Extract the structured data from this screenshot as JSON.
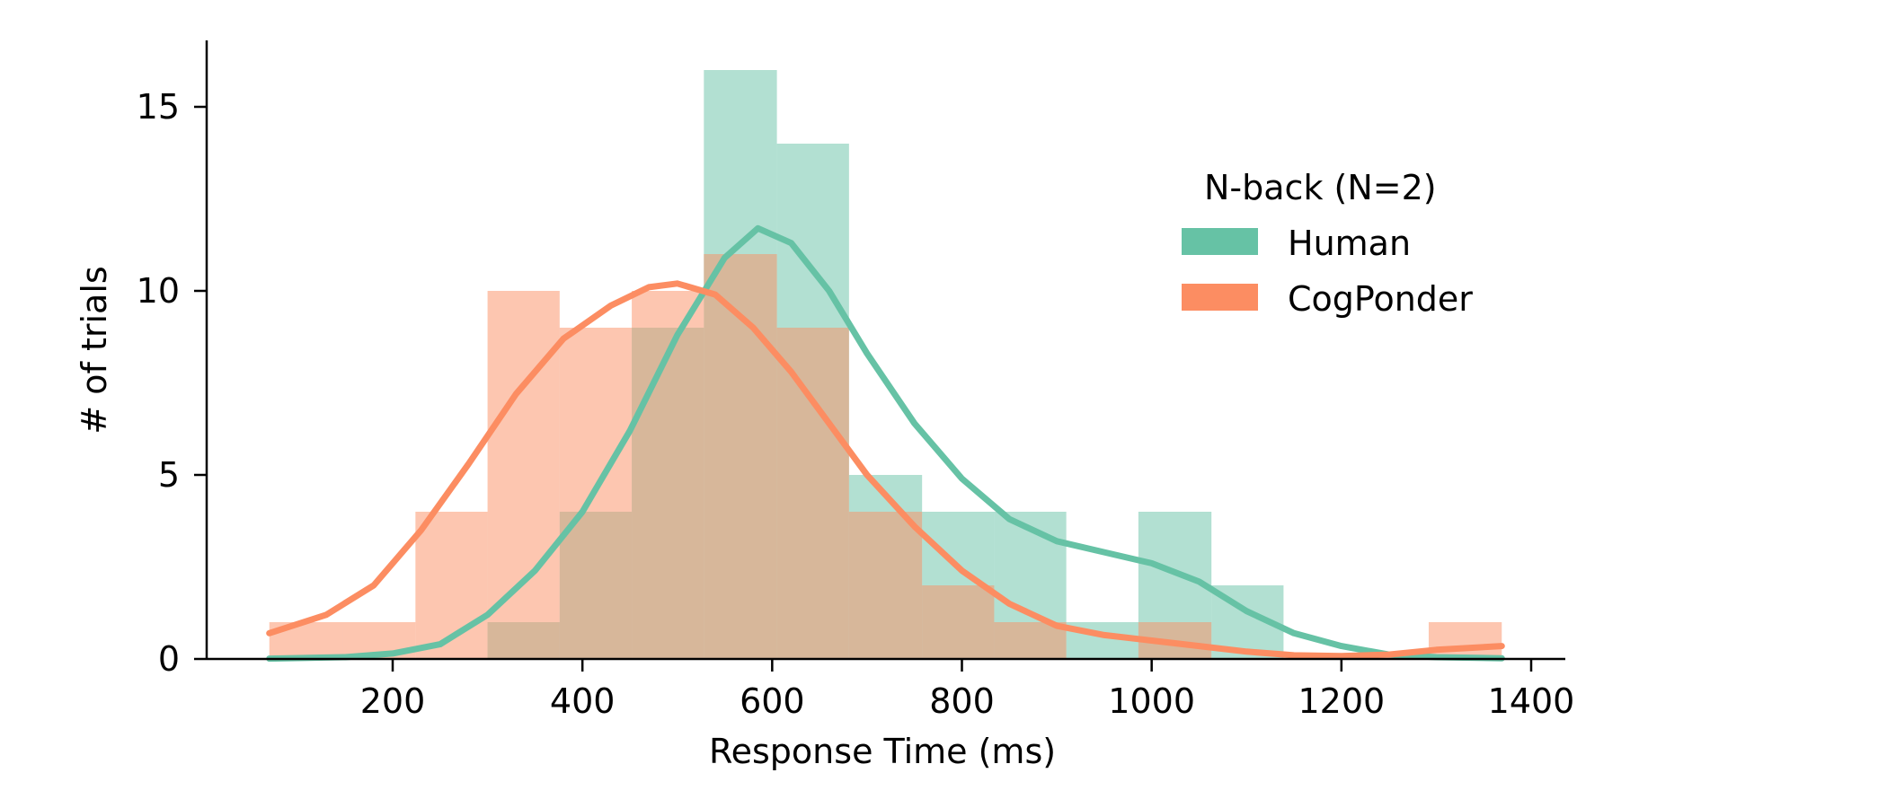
{
  "chart_data": {
    "type": "histogram",
    "xlabel": "Response Time (ms)",
    "ylabel": "# of trials",
    "xlim": [
      0,
      1400
    ],
    "ylim": [
      0,
      16.8
    ],
    "xticks": [
      200,
      400,
      600,
      800,
      1000,
      1200,
      1400
    ],
    "yticks": [
      0,
      5,
      10,
      15
    ],
    "legend": {
      "title": "N-back (N=2)",
      "position": "upper-right"
    },
    "series": [
      {
        "name": "Human",
        "color": "#66c2a5",
        "bins": [
          {
            "x0": 70,
            "x1": 147,
            "count": 0
          },
          {
            "x0": 147,
            "x1": 224,
            "count": 0
          },
          {
            "x0": 224,
            "x1": 300,
            "count": 0
          },
          {
            "x0": 300,
            "x1": 376,
            "count": 1
          },
          {
            "x0": 376,
            "x1": 452,
            "count": 4
          },
          {
            "x0": 452,
            "x1": 528,
            "count": 9
          },
          {
            "x0": 528,
            "x1": 605,
            "count": 16
          },
          {
            "x0": 605,
            "x1": 681,
            "count": 14
          },
          {
            "x0": 681,
            "x1": 758,
            "count": 5
          },
          {
            "x0": 758,
            "x1": 834,
            "count": 4
          },
          {
            "x0": 834,
            "x1": 910,
            "count": 4
          },
          {
            "x0": 910,
            "x1": 986,
            "count": 1
          },
          {
            "x0": 986,
            "x1": 1063,
            "count": 4
          },
          {
            "x0": 1063,
            "x1": 1139,
            "count": 2
          },
          {
            "x0": 1139,
            "x1": 1216,
            "count": 0
          },
          {
            "x0": 1216,
            "x1": 1292,
            "count": 0
          },
          {
            "x0": 1292,
            "x1": 1369,
            "count": 0
          }
        ],
        "kde": [
          [
            70,
            0.01
          ],
          [
            150,
            0.05
          ],
          [
            200,
            0.15
          ],
          [
            250,
            0.4
          ],
          [
            300,
            1.2
          ],
          [
            350,
            2.4
          ],
          [
            400,
            4.0
          ],
          [
            450,
            6.2
          ],
          [
            500,
            8.8
          ],
          [
            550,
            10.9
          ],
          [
            585,
            11.7
          ],
          [
            620,
            11.3
          ],
          [
            660,
            10.0
          ],
          [
            700,
            8.3
          ],
          [
            750,
            6.4
          ],
          [
            800,
            4.9
          ],
          [
            850,
            3.8
          ],
          [
            900,
            3.2
          ],
          [
            950,
            2.9
          ],
          [
            1000,
            2.6
          ],
          [
            1050,
            2.1
          ],
          [
            1100,
            1.3
          ],
          [
            1150,
            0.7
          ],
          [
            1200,
            0.35
          ],
          [
            1250,
            0.12
          ],
          [
            1300,
            0.05
          ],
          [
            1369,
            0.02
          ]
        ]
      },
      {
        "name": "CogPonder",
        "color": "#fc8d62",
        "bins": [
          {
            "x0": 70,
            "x1": 147,
            "count": 1
          },
          {
            "x0": 147,
            "x1": 224,
            "count": 1
          },
          {
            "x0": 224,
            "x1": 300,
            "count": 4
          },
          {
            "x0": 300,
            "x1": 376,
            "count": 10
          },
          {
            "x0": 376,
            "x1": 452,
            "count": 9
          },
          {
            "x0": 452,
            "x1": 528,
            "count": 10
          },
          {
            "x0": 528,
            "x1": 605,
            "count": 11
          },
          {
            "x0": 605,
            "x1": 681,
            "count": 9
          },
          {
            "x0": 681,
            "x1": 758,
            "count": 4
          },
          {
            "x0": 758,
            "x1": 834,
            "count": 2
          },
          {
            "x0": 834,
            "x1": 910,
            "count": 1
          },
          {
            "x0": 910,
            "x1": 986,
            "count": 0
          },
          {
            "x0": 986,
            "x1": 1063,
            "count": 1
          },
          {
            "x0": 1063,
            "x1": 1139,
            "count": 0
          },
          {
            "x0": 1139,
            "x1": 1216,
            "count": 0
          },
          {
            "x0": 1216,
            "x1": 1292,
            "count": 0
          },
          {
            "x0": 1292,
            "x1": 1369,
            "count": 1
          }
        ],
        "kde": [
          [
            70,
            0.7
          ],
          [
            130,
            1.2
          ],
          [
            180,
            2.0
          ],
          [
            230,
            3.5
          ],
          [
            280,
            5.3
          ],
          [
            330,
            7.2
          ],
          [
            380,
            8.7
          ],
          [
            430,
            9.6
          ],
          [
            470,
            10.1
          ],
          [
            500,
            10.2
          ],
          [
            540,
            9.9
          ],
          [
            580,
            9.0
          ],
          [
            620,
            7.8
          ],
          [
            660,
            6.4
          ],
          [
            700,
            5.0
          ],
          [
            750,
            3.6
          ],
          [
            800,
            2.4
          ],
          [
            850,
            1.5
          ],
          [
            900,
            0.9
          ],
          [
            950,
            0.65
          ],
          [
            1000,
            0.5
          ],
          [
            1050,
            0.35
          ],
          [
            1100,
            0.2
          ],
          [
            1150,
            0.1
          ],
          [
            1200,
            0.08
          ],
          [
            1250,
            0.12
          ],
          [
            1300,
            0.25
          ],
          [
            1369,
            0.35
          ]
        ]
      }
    ]
  }
}
